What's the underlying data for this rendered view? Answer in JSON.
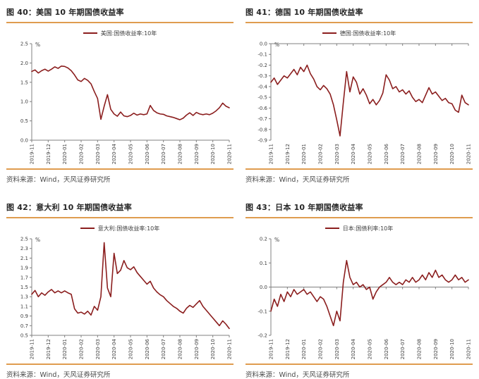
{
  "colors": {
    "line": "#8B1E1E",
    "rule_orange": "#DF9C4F",
    "axis_gray": "#808080",
    "tick_text": "#404040"
  },
  "chart_data": [
    {
      "type": "line",
      "title": "图 40：美国 10 年期国债收益率",
      "legend": "美国:国债收益率:10年",
      "source": "资料来源：Wind，天风证券研究所",
      "ylabel": "%",
      "legend_position": "top",
      "grid": false,
      "ylim": [
        0,
        2.5
      ],
      "yticks": [
        "2.5",
        "2.0",
        "1.5",
        "1.0",
        "0.5",
        "0.0"
      ],
      "axis_cross": 0,
      "categories": [
        "2019-11",
        "2019-12",
        "2020-01",
        "2020-02",
        "2020-03",
        "2020-04",
        "2020-05",
        "2020-06",
        "2020-07",
        "2020-08",
        "2020-09",
        "2020-10",
        "2020-11"
      ],
      "values": [
        1.78,
        1.82,
        1.74,
        1.8,
        1.84,
        1.79,
        1.84,
        1.9,
        1.86,
        1.92,
        1.91,
        1.87,
        1.8,
        1.69,
        1.56,
        1.52,
        1.6,
        1.55,
        1.46,
        1.26,
        1.08,
        0.54,
        0.88,
        1.18,
        0.8,
        0.68,
        0.62,
        0.73,
        0.63,
        0.61,
        0.64,
        0.7,
        0.65,
        0.68,
        0.66,
        0.68,
        0.9,
        0.77,
        0.71,
        0.68,
        0.67,
        0.63,
        0.61,
        0.59,
        0.56,
        0.53,
        0.57,
        0.65,
        0.71,
        0.64,
        0.72,
        0.68,
        0.66,
        0.68,
        0.66,
        0.7,
        0.76,
        0.84,
        0.96,
        0.88,
        0.84
      ]
    },
    {
      "type": "line",
      "title": "图 41：德国 10 年期国债收益率",
      "legend": "德国:国债收益率:10年",
      "source": "资料来源：Wind，天风证券研究所",
      "ylabel": "%",
      "legend_position": "top",
      "grid": false,
      "ylim": [
        -0.9,
        0.0
      ],
      "yticks": [
        "0.0",
        "-0.1",
        "-0.2",
        "-0.3",
        "-0.4",
        "-0.5",
        "-0.6",
        "-0.7",
        "-0.8",
        "-0.9"
      ],
      "axis_cross": 0,
      "categories": [
        "2019-11",
        "2019-12",
        "2020-01",
        "2020-02",
        "2020-03",
        "2020-04",
        "2020-05",
        "2020-06",
        "2020-07",
        "2020-08",
        "2020-09",
        "2020-10",
        "2020-11"
      ],
      "values": [
        -0.36,
        -0.32,
        -0.38,
        -0.34,
        -0.3,
        -0.32,
        -0.28,
        -0.24,
        -0.29,
        -0.22,
        -0.26,
        -0.2,
        -0.28,
        -0.33,
        -0.4,
        -0.43,
        -0.39,
        -0.42,
        -0.47,
        -0.57,
        -0.71,
        -0.86,
        -0.55,
        -0.26,
        -0.45,
        -0.31,
        -0.36,
        -0.47,
        -0.42,
        -0.48,
        -0.56,
        -0.52,
        -0.57,
        -0.53,
        -0.46,
        -0.29,
        -0.34,
        -0.42,
        -0.4,
        -0.45,
        -0.43,
        -0.47,
        -0.44,
        -0.5,
        -0.54,
        -0.52,
        -0.55,
        -0.48,
        -0.41,
        -0.47,
        -0.45,
        -0.49,
        -0.53,
        -0.51,
        -0.55,
        -0.56,
        -0.62,
        -0.64,
        -0.48,
        -0.55,
        -0.57
      ]
    },
    {
      "type": "line",
      "title": "图 42：意大利 10 年期国债收益率",
      "legend": "意大利:国债收益率:10年",
      "source": "资料来源：Wind，天风证券研究所",
      "ylabel": "%",
      "legend_position": "top",
      "grid": false,
      "ylim": [
        0.5,
        2.5
      ],
      "yticks": [
        "2.5",
        "2.3",
        "2.1",
        "1.9",
        "1.7",
        "1.5",
        "1.3",
        "1.1",
        "0.9",
        "0.7",
        "0.5"
      ],
      "axis_cross": 0.5,
      "categories": [
        "2019-11",
        "2019-12",
        "2020-01",
        "2020-02",
        "2020-03",
        "2020-04",
        "2020-05",
        "2020-06",
        "2020-07",
        "2020-08",
        "2020-09",
        "2020-10",
        "2020-11"
      ],
      "values": [
        1.35,
        1.43,
        1.3,
        1.38,
        1.33,
        1.4,
        1.45,
        1.38,
        1.42,
        1.38,
        1.42,
        1.38,
        1.35,
        1.05,
        0.96,
        0.98,
        0.94,
        1.0,
        0.92,
        1.1,
        1.02,
        1.3,
        2.42,
        1.48,
        1.3,
        2.2,
        1.78,
        1.85,
        2.05,
        1.9,
        1.86,
        1.92,
        1.8,
        1.72,
        1.64,
        1.56,
        1.62,
        1.48,
        1.4,
        1.34,
        1.3,
        1.22,
        1.16,
        1.1,
        1.06,
        1.0,
        0.96,
        1.06,
        1.12,
        1.08,
        1.15,
        1.22,
        1.1,
        1.02,
        0.94,
        0.86,
        0.78,
        0.7,
        0.8,
        0.73,
        0.64
      ]
    },
    {
      "type": "line",
      "title": "图 43：日本 10 年期国债收益率",
      "legend": "日本:国债利率:10年",
      "source": "资料来源：Wind，天风证券研究所",
      "ylabel": "%",
      "legend_position": "top",
      "grid": false,
      "ylim": [
        -0.2,
        0.2
      ],
      "yticks": [
        "0.2",
        "0.1",
        "0.0",
        "-0.1",
        "-0.2"
      ],
      "axis_cross": 0,
      "categories": [
        "2019-11",
        "2019-12",
        "2020-01",
        "2020-02",
        "2020-03",
        "2020-04",
        "2020-05",
        "2020-06",
        "2020-07",
        "2020-08",
        "2020-09",
        "2020-10",
        "2020-11"
      ],
      "values": [
        -0.1,
        -0.05,
        -0.08,
        -0.03,
        -0.06,
        -0.02,
        -0.04,
        -0.01,
        -0.03,
        -0.02,
        -0.01,
        -0.03,
        -0.02,
        -0.04,
        -0.06,
        -0.04,
        -0.05,
        -0.08,
        -0.12,
        -0.16,
        -0.1,
        -0.14,
        0.02,
        0.11,
        0.04,
        0.01,
        0.02,
        0.0,
        0.01,
        -0.01,
        0.0,
        -0.05,
        -0.02,
        0.0,
        0.01,
        0.02,
        0.04,
        0.02,
        0.01,
        0.02,
        0.01,
        0.03,
        0.02,
        0.04,
        0.02,
        0.03,
        0.05,
        0.03,
        0.06,
        0.04,
        0.07,
        0.04,
        0.05,
        0.03,
        0.02,
        0.03,
        0.05,
        0.03,
        0.04,
        0.02,
        0.03
      ]
    }
  ]
}
